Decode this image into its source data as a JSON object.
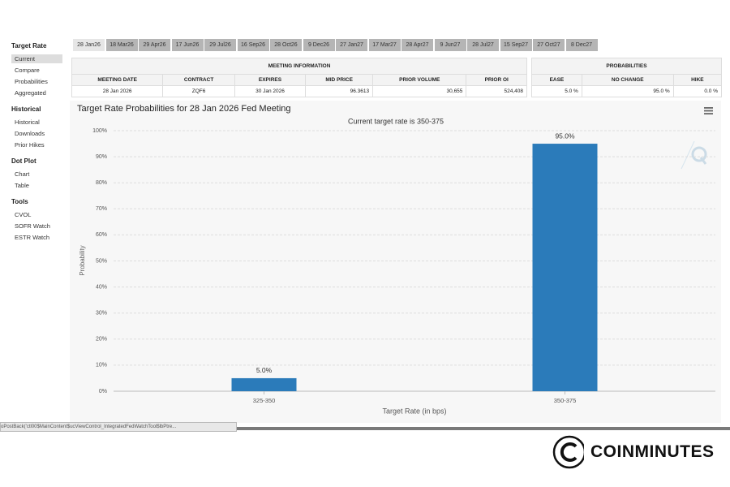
{
  "sidebar": [
    {
      "heading": "Target Rate",
      "items": [
        "Current",
        "Compare",
        "Probabilities",
        "Aggregated"
      ]
    },
    {
      "heading": "Historical",
      "items": [
        "Historical",
        "Downloads",
        "Prior Hikes"
      ]
    },
    {
      "heading": "Dot Plot",
      "items": [
        "Chart",
        "Table"
      ]
    },
    {
      "heading": "Tools",
      "items": [
        "CVOL",
        "SOFR Watch",
        "ESTR Watch"
      ]
    }
  ],
  "tabs": [
    "28 Jan26",
    "18 Mar26",
    "29 Apr26",
    "17 Jun26",
    "29 Jul26",
    "16 Sep26",
    "28 Oct26",
    "9 Dec26",
    "27 Jan27",
    "17 Mar27",
    "28 Apr27",
    "9 Jun27",
    "28 Jul27",
    "15 Sep27",
    "27 Oct27",
    "8 Dec27"
  ],
  "meeting_table": {
    "title": "MEETING INFORMATION",
    "columns": [
      "MEETING DATE",
      "CONTRACT",
      "EXPIRES",
      "MID PRICE",
      "PRIOR VOLUME",
      "PRIOR OI"
    ],
    "rows": [
      [
        "28 Jan 2026",
        "ZQF6",
        "30 Jan 2026",
        "96.3613",
        "30,655",
        "524,408"
      ]
    ]
  },
  "probabilities_table": {
    "title": "PROBABILITIES",
    "columns": [
      "EASE",
      "NO CHANGE",
      "HIKE"
    ],
    "rows": [
      [
        "5.0 %",
        "95.0 %",
        "0.0 %"
      ]
    ]
  },
  "chart_data": {
    "type": "bar",
    "title": "Target Rate Probabilities for 28 Jan 2026 Fed Meeting",
    "subtitle": "Current target rate is 350-375",
    "x_label": "Target Rate (in bps)",
    "y_label": "Probability",
    "categories": [
      "325-350",
      "350-375"
    ],
    "values": [
      5.0,
      95.0
    ],
    "value_labels": [
      "5.0%",
      "95.0%"
    ],
    "color": "#2b7bba",
    "grid": true,
    "ylim": [
      0,
      100
    ],
    "yticks": [
      {
        "value": 0,
        "label": "0%"
      },
      {
        "value": 10,
        "label": "10%"
      },
      {
        "value": 20,
        "label": "20%"
      },
      {
        "value": 30,
        "label": "30%"
      },
      {
        "value": 40,
        "label": "40%"
      },
      {
        "value": 50,
        "label": "50%"
      },
      {
        "value": 60,
        "label": "60%"
      },
      {
        "value": 70,
        "label": "70%"
      },
      {
        "value": 80,
        "label": "80%"
      },
      {
        "value": 90,
        "label": "90%"
      },
      {
        "value": 100,
        "label": "100%"
      }
    ]
  },
  "status_bar": "oPostBack('ctl00$MainContent$ucViewControl_IntegratedFedWatchTool$lbPtre...",
  "brand": "COINMINUTES"
}
